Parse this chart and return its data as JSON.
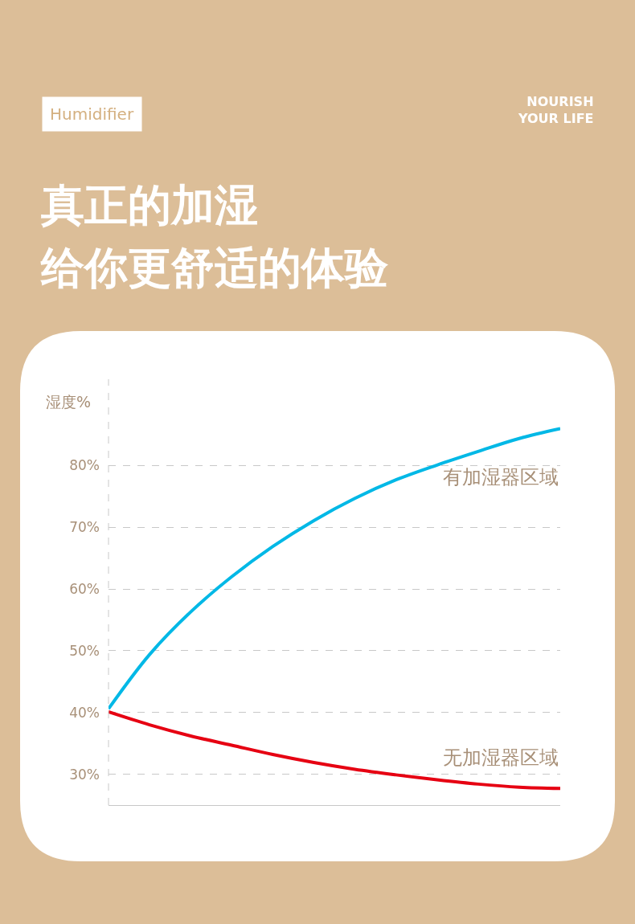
{
  "chart_data": {
    "type": "line",
    "title": "真正的加湿",
    "subtitle": "给你更舒适的体验",
    "ylabel": "湿度%",
    "annotations": [
      "Humidifier",
      "NOURISH\nYOUR LIFE"
    ],
    "categories": [
      null,
      null,
      null,
      null,
      null,
      null,
      null,
      null,
      null,
      null,
      null,
      null
    ],
    "series": [
      {
        "name": "有加湿器区域",
        "color": "#00b8e6",
        "values": [
          40.6,
          49.4,
          56.3,
          62.0,
          66.9,
          71.1,
          74.7,
          77.7,
          80.1,
          82.3,
          84.4,
          86.0
        ]
      },
      {
        "name": "无加湿器区域",
        "color": "#e60012",
        "values": [
          40.1,
          38.0,
          36.2,
          34.7,
          33.2,
          31.9,
          30.8,
          29.9,
          29.1,
          28.4,
          27.9,
          27.7
        ]
      }
    ],
    "ylim": [
      25,
      94
    ],
    "yticks": [
      {
        "value": 30,
        "label": "30%"
      },
      {
        "value": 40,
        "label": "40%"
      },
      {
        "value": 50,
        "label": "50%"
      },
      {
        "value": 60,
        "label": "60%"
      },
      {
        "value": 70,
        "label": "70%"
      },
      {
        "value": 80,
        "label": "80%"
      }
    ],
    "grid": "y",
    "legend": false,
    "marker": "none",
    "line_style": "solid"
  }
}
